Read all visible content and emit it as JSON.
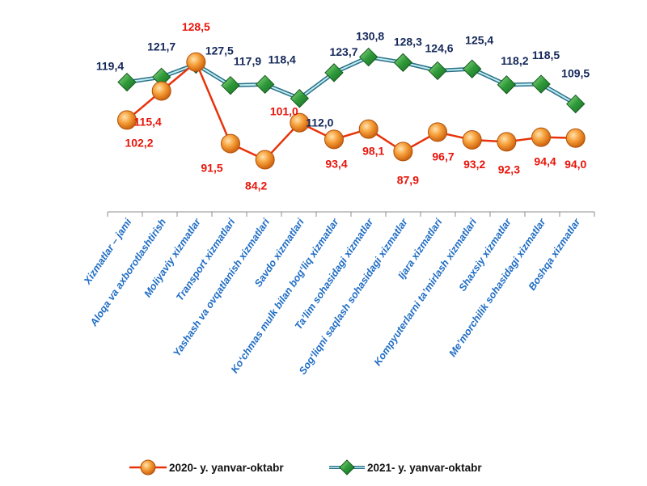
{
  "chart_data": {
    "type": "line",
    "categories": [
      "Xizmatlar – jami",
      "Aloqa va axborotlashtirish",
      "Moliyaviy xizmatlar",
      "Transport xizmatlari",
      "Yashash va ovqatlanish xizmatlari",
      "Savdo xizmatlari",
      "Ko‘chmas mulk bilan bog‘liq xizmatlar",
      "Ta’lim sohasidagi xizmatlar",
      "Sog‘liqni saqlash sohasidagi xizmatlar",
      "Ijara xizmatlari",
      "Kompyuterlarni ta’mirlash xizmatlari",
      "Shaxsiy xizmatlar",
      "Me’morchilik sohasidagi xizmatlar",
      "Boshqa xizmatlar"
    ],
    "series": [
      {
        "name": "2020- y. yanvar-oktabr",
        "values": [
          102.2,
          115.4,
          128.5,
          91.5,
          84.2,
          101.0,
          93.4,
          98.1,
          87.9,
          96.7,
          93.2,
          92.3,
          94.4,
          94.0
        ],
        "labels": [
          "102,2",
          "115,4",
          "128,5",
          "91,5",
          "84,2",
          "101,0",
          "93,4",
          "98,1",
          "87,9",
          "96,7",
          "93,2",
          "92,3",
          "94,4",
          "94,0"
        ],
        "color": "#e8320a",
        "marker_color": "#f39a2e"
      },
      {
        "name": "2021- y. yanvar-oktabr",
        "values": [
          119.4,
          121.7,
          127.5,
          117.9,
          118.4,
          112.0,
          123.7,
          130.8,
          128.3,
          124.6,
          125.4,
          118.2,
          118.5,
          109.5
        ],
        "labels": [
          "119,4",
          "121,7",
          "127,5",
          "117,9",
          "118,4",
          "112,0",
          "123,7",
          "130,8",
          "128,3",
          "124,6",
          "125,4",
          "118,2",
          "118,5",
          "109,5"
        ],
        "color": "#5fb8c8",
        "marker_color": "#2f9a3a"
      }
    ],
    "title": "",
    "xlabel": "",
    "ylabel": "",
    "ylim": [
      80,
      135
    ],
    "grid": false,
    "legend": "bottom"
  }
}
